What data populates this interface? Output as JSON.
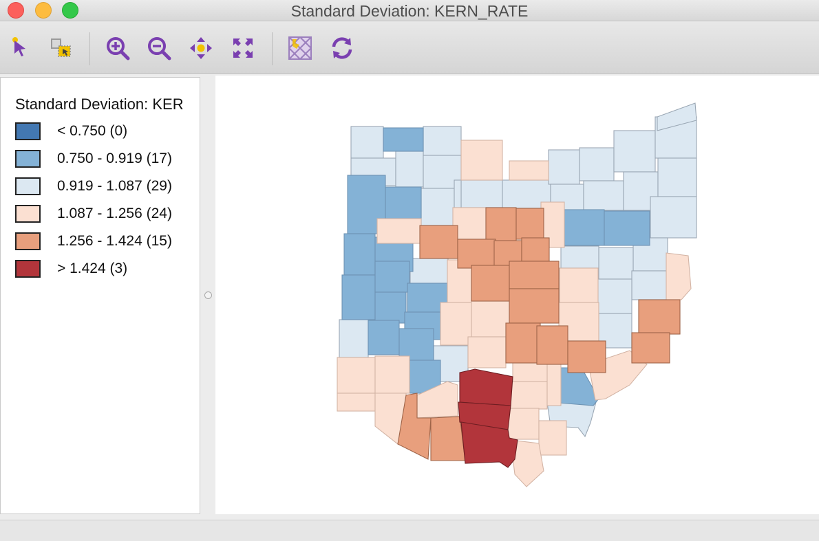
{
  "window": {
    "title": "Standard Deviation: KERN_RATE"
  },
  "toolbar": {
    "tools": [
      "select-tool",
      "selection-shape-tool",
      "zoom-in-tool",
      "zoom-out-tool",
      "pan-tool",
      "full-extent-tool",
      "map-layer-tool",
      "refresh-tool"
    ]
  },
  "legend": {
    "title": "Standard Deviation: KER",
    "items": [
      {
        "label": "< 0.750 (0)",
        "color": "#4378b2"
      },
      {
        "label": "0.750 - 0.919 (17)",
        "color": "#84b2d6"
      },
      {
        "label": "0.919 - 1.087 (29)",
        "color": "#dce8f2"
      },
      {
        "label": "1.087 - 1.256 (24)",
        "color": "#fbe0d2"
      },
      {
        "label": "1.256 - 1.424 (15)",
        "color": "#e89f7d"
      },
      {
        "label": "> 1.424 (3)",
        "color": "#b2353b"
      }
    ]
  },
  "colors": {
    "accent_icon": "#7a3fb0",
    "selection_icon": "#f2c200"
  }
}
